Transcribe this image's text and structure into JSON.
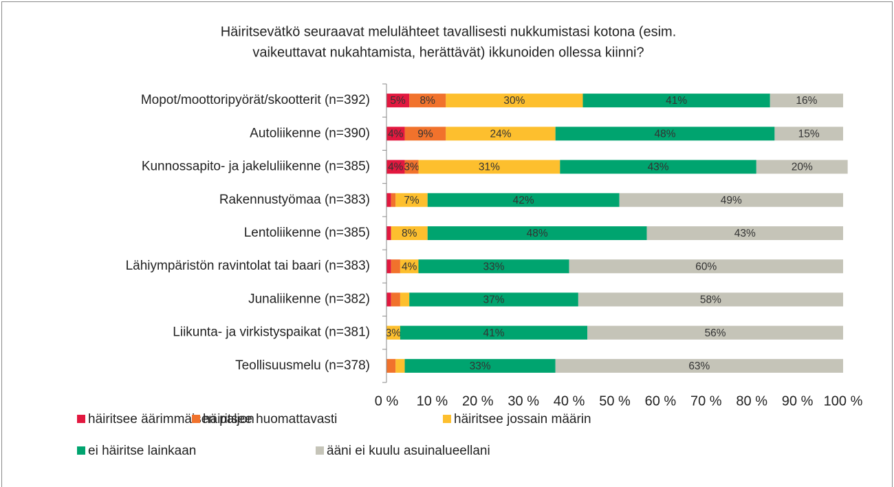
{
  "chart_data": {
    "type": "stacked_barh",
    "title": [
      "Häiritsevätkö seuraavat melulähteet tavallisesti nukkumistasi kotona (esim.",
      "vaikeuttavat nukahtamista, herättävät) ikkunoiden ollessa kiinni?"
    ],
    "categories": [
      "Mopot/moottoripyörät/skootterit (n=392)",
      "Autoliikenne (n=390)",
      "Kunnossapito- ja jakeluliikenne (n=385)",
      "Rakennustyömaa (n=383)",
      "Lentoliikenne (n=385)",
      "Lähiympäristön ravintolat tai baari (n=383)",
      "Junaliikenne (n=382)",
      "Liikunta- ja virkistyspaikat (n=381)",
      "Teollisuusmelu (n=378)"
    ],
    "series": [
      {
        "name": "häiritsee äärimmäisen paljon",
        "color": "#e2183f",
        "values": [
          5,
          4,
          4,
          1,
          1,
          1,
          1,
          0,
          0
        ],
        "value_labels": [
          "5%",
          "4%",
          "4%",
          null,
          null,
          null,
          null,
          null,
          null
        ]
      },
      {
        "name": "häiritsee huomattavasti",
        "color": "#f1722c",
        "values": [
          8,
          9,
          3,
          1,
          0,
          2,
          2,
          0,
          2
        ],
        "value_labels": [
          "8%",
          "9%",
          "3%",
          null,
          null,
          null,
          null,
          null,
          null
        ]
      },
      {
        "name": "häiritsee jossain määrin",
        "color": "#fdbf2e",
        "values": [
          30,
          24,
          31,
          7,
          8,
          4,
          2,
          3,
          2
        ],
        "value_labels": [
          "30%",
          "24%",
          "31%",
          "7%",
          "8%",
          "4%",
          null,
          "3%",
          null
        ]
      },
      {
        "name": "ei häiritse lainkaan",
        "color": "#00a46f",
        "values": [
          41,
          48,
          43,
          42,
          48,
          33,
          37,
          41,
          33
        ],
        "value_labels": [
          "41%",
          "48%",
          "43%",
          "42%",
          "48%",
          "33%",
          "37%",
          "41%",
          "33%"
        ]
      },
      {
        "name": "ääni ei kuulu asuinalueellani",
        "color": "#c5c4b8",
        "values": [
          16,
          15,
          20,
          49,
          43,
          60,
          58,
          56,
          63
        ],
        "value_labels": [
          "16%",
          "15%",
          "20%",
          "49%",
          "43%",
          "60%",
          "58%",
          "56%",
          "63%"
        ]
      }
    ],
    "xlim": [
      0,
      100
    ],
    "xticks": [
      {
        "value": 0,
        "label": "0 %"
      },
      {
        "value": 10,
        "label": "10 %"
      },
      {
        "value": 20,
        "label": "20 %"
      },
      {
        "value": 30,
        "label": "30 %"
      },
      {
        "value": 40,
        "label": "40 %"
      },
      {
        "value": 50,
        "label": "50 %"
      },
      {
        "value": 60,
        "label": "60 %"
      },
      {
        "value": 70,
        "label": "70 %"
      },
      {
        "value": 80,
        "label": "80 %"
      },
      {
        "value": 90,
        "label": "90 %"
      },
      {
        "value": 100,
        "label": "100 %"
      }
    ],
    "grid": false,
    "legend": "bottom"
  }
}
